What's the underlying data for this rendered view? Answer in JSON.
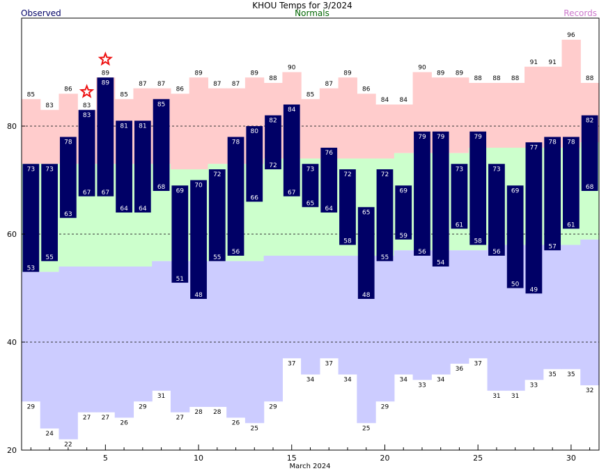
{
  "header": {
    "title": "KHOU Temps for 3/2024",
    "observed_label": "Observed",
    "normals_label": "Normals",
    "records_label": "Records"
  },
  "colors": {
    "observed": "#000066",
    "normals_band": "#ccffcc",
    "record_high_band": "#ffcccc",
    "record_low_band": "#ccccff",
    "normals_text": "#006600",
    "records_text": "#cc77cc",
    "star": "#ee1111"
  },
  "chart_data": {
    "type": "bar",
    "title": "KHOU Temps for 3/2024",
    "xlabel": "March 2024",
    "ylabel": "",
    "x_ticks": [
      5,
      10,
      15,
      20,
      25,
      30
    ],
    "y_ticks": [
      20,
      40,
      60,
      80
    ],
    "ylim": [
      20,
      100
    ],
    "days": [
      1,
      2,
      3,
      4,
      5,
      6,
      7,
      8,
      9,
      10,
      11,
      12,
      13,
      14,
      15,
      16,
      17,
      18,
      19,
      20,
      21,
      22,
      23,
      24,
      25,
      26,
      27,
      28,
      29,
      30,
      31
    ],
    "series": [
      {
        "name": "Observed High",
        "values": [
          73,
          73,
          78,
          83,
          89,
          81,
          81,
          85,
          69,
          70,
          72,
          78,
          80,
          82,
          84,
          73,
          76,
          72,
          65,
          72,
          69,
          79,
          79,
          73,
          79,
          73,
          69,
          77,
          78,
          78,
          82
        ]
      },
      {
        "name": "Observed Low",
        "values": [
          53,
          55,
          63,
          67,
          67,
          64,
          64,
          68,
          51,
          48,
          55,
          56,
          66,
          72,
          67,
          65,
          64,
          58,
          48,
          55,
          59,
          56,
          54,
          61,
          58,
          56,
          50,
          49,
          57,
          61,
          68
        ]
      },
      {
        "name": "Normals High",
        "values": [
          73,
          73,
          73,
          73,
          73,
          73,
          73,
          73,
          72,
          72,
          73,
          73,
          73,
          74,
          74,
          74,
          74,
          74,
          74,
          74,
          75,
          75,
          75,
          75,
          76,
          76,
          76,
          76,
          76,
          76,
          77
        ]
      },
      {
        "name": "Normals Low",
        "values": [
          53,
          53,
          54,
          54,
          54,
          54,
          54,
          55,
          55,
          55,
          55,
          55,
          55,
          56,
          56,
          56,
          56,
          56,
          56,
          56,
          57,
          57,
          57,
          57,
          57,
          58,
          58,
          58,
          58,
          58,
          59
        ]
      },
      {
        "name": "Record High",
        "values": [
          85,
          83,
          86,
          83,
          89,
          85,
          87,
          87,
          86,
          89,
          87,
          87,
          89,
          88,
          90,
          85,
          87,
          89,
          86,
          84,
          84,
          90,
          89,
          89,
          88,
          88,
          88,
          91,
          91,
          96,
          88
        ]
      },
      {
        "name": "Record Low",
        "values": [
          29,
          24,
          22,
          27,
          27,
          26,
          29,
          31,
          27,
          28,
          28,
          26,
          25,
          29,
          37,
          34,
          37,
          34,
          25,
          29,
          34,
          33,
          34,
          36,
          37,
          31,
          31,
          33,
          35,
          35,
          32
        ]
      }
    ],
    "record_high_stars": [
      4,
      5
    ],
    "grid": "dashed at 40, 60, 80"
  }
}
